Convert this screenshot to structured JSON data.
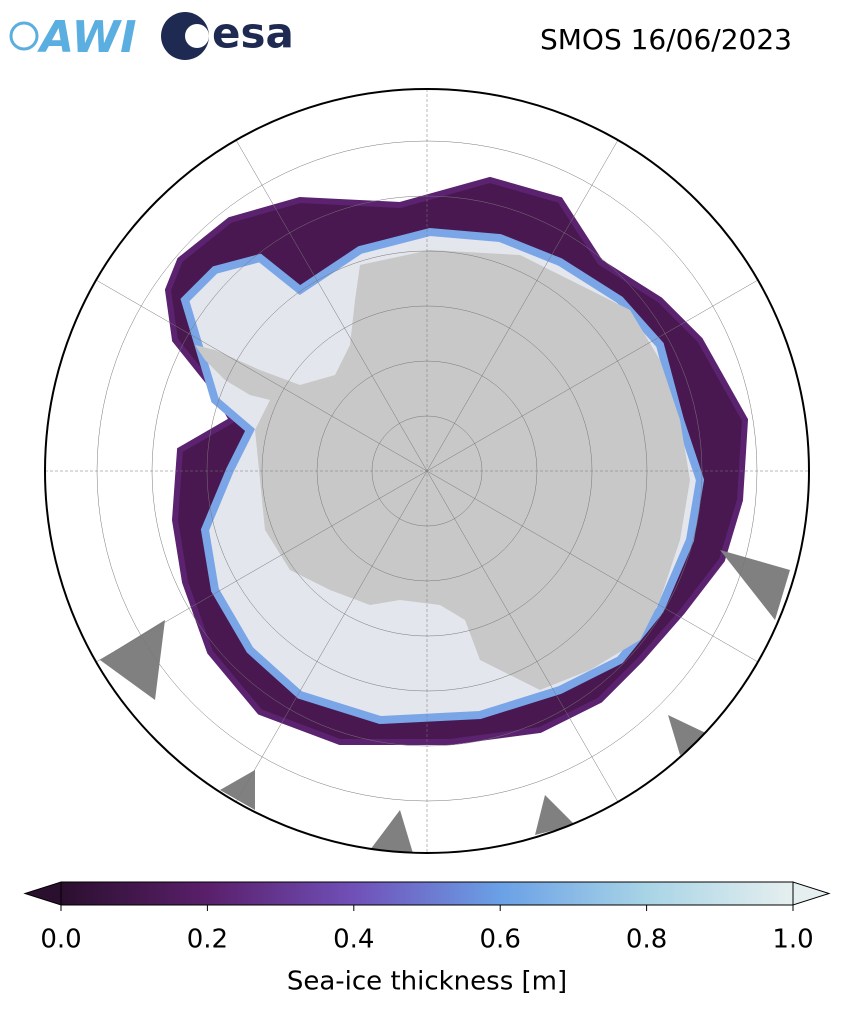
{
  "title": "SMOS 16/06/2023",
  "logos": [
    "AWI",
    "esa"
  ],
  "colorbar": {
    "label": "Sea-ice thickness [m]",
    "lim": [
      0,
      1
    ],
    "ticks": [
      {
        "value": 0,
        "label": "0.0"
      },
      {
        "value": 0.2,
        "label": "0.2"
      },
      {
        "value": 0.4,
        "label": "0.4"
      },
      {
        "value": 0.6,
        "label": "0.6"
      },
      {
        "value": 0.8,
        "label": "0.8"
      },
      {
        "value": 1,
        "label": "1.0"
      }
    ],
    "colors": [
      "#2b0f2e",
      "#5a1f6b",
      "#7050b8",
      "#6aa0e6",
      "#a8d4e6",
      "#e6efef"
    ]
  }
}
